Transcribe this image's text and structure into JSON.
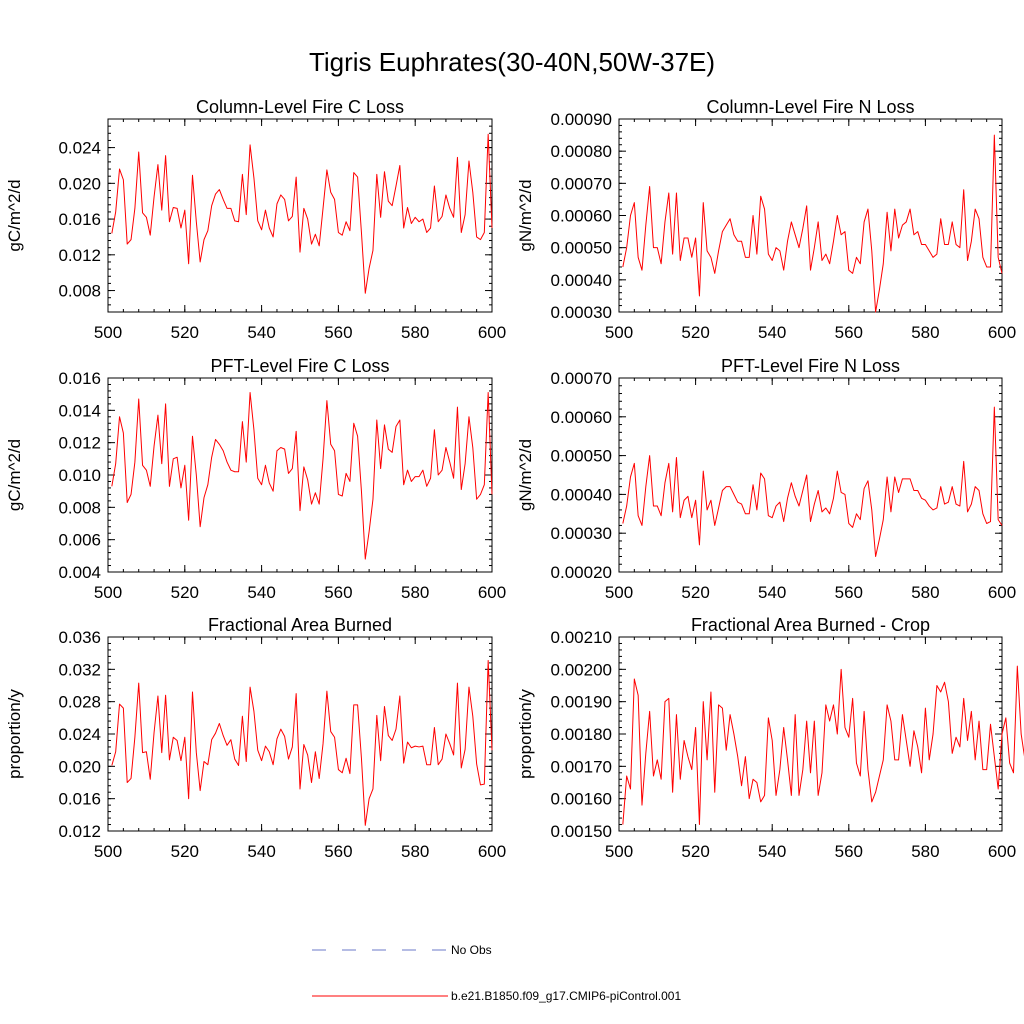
{
  "figure": {
    "title": "Tigris Euphrates(30-40N,50W-37E)"
  },
  "legend": {
    "entries": [
      {
        "label": "No Obs",
        "color": "#6b78c8",
        "style": "dashed"
      },
      {
        "label": "b.e21.B1850.f09_g17.CMIP6-piControl.001",
        "color": "#ff0000",
        "style": "solid"
      }
    ]
  },
  "chart_data": [
    {
      "type": "line",
      "title": "Column-Level Fire C Loss",
      "xlabel": "",
      "ylabel": "gC/m^2/d",
      "xlim": [
        500,
        600
      ],
      "ylim": [
        0.0056,
        0.0272
      ],
      "xticks": [
        500,
        520,
        540,
        560,
        580,
        600
      ],
      "xtick_labels": [
        "500",
        "520",
        "540",
        "560",
        "580",
        "600"
      ],
      "yticks": [
        0.008,
        0.012,
        0.016,
        0.02,
        0.024
      ],
      "ytick_labels": [
        "0.008",
        "0.012",
        "0.016",
        "0.020",
        "0.024"
      ],
      "x_start": 501,
      "series": [
        {
          "name": "b.e21.B1850.f09_g17.CMIP6-piControl.001",
          "color": "#ff0000",
          "values": [
            0.0144,
            0.0168,
            0.0216,
            0.0204,
            0.0132,
            0.0137,
            0.0172,
            0.0235,
            0.0167,
            0.0162,
            0.0142,
            0.0185,
            0.0221,
            0.017,
            0.0231,
            0.0157,
            0.0173,
            0.0172,
            0.015,
            0.017,
            0.011,
            0.0209,
            0.0157,
            0.0112,
            0.0137,
            0.0147,
            0.0175,
            0.0188,
            0.0193,
            0.0182,
            0.0172,
            0.0172,
            0.0158,
            0.0157,
            0.021,
            0.0165,
            0.0243,
            0.0206,
            0.0158,
            0.0148,
            0.017,
            0.015,
            0.014,
            0.0177,
            0.0187,
            0.0182,
            0.0158,
            0.0163,
            0.0207,
            0.0123,
            0.0172,
            0.016,
            0.0132,
            0.0143,
            0.013,
            0.0172,
            0.0215,
            0.019,
            0.0182,
            0.0145,
            0.0142,
            0.0157,
            0.0147,
            0.0212,
            0.0207,
            0.0145,
            0.0077,
            0.0105,
            0.0125,
            0.021,
            0.0162,
            0.0213,
            0.018,
            0.0175,
            0.0197,
            0.022,
            0.015,
            0.0173,
            0.0155,
            0.0162,
            0.0157,
            0.016,
            0.0145,
            0.015,
            0.0197,
            0.0157,
            0.0163,
            0.0187,
            0.0172,
            0.0162,
            0.0229,
            0.0145,
            0.0165,
            0.0225,
            0.019,
            0.014,
            0.0137,
            0.0145,
            0.0255,
            0.015
          ]
        }
      ]
    },
    {
      "type": "line",
      "title": "Column-Level Fire N Loss",
      "xlabel": "",
      "ylabel": "gN/m^2/d",
      "xlim": [
        500,
        600
      ],
      "ylim": [
        0.0003,
        0.0009
      ],
      "xticks": [
        500,
        520,
        540,
        560,
        580,
        600
      ],
      "xtick_labels": [
        "500",
        "520",
        "540",
        "560",
        "580",
        "600"
      ],
      "yticks": [
        0.0003,
        0.0004,
        0.0005,
        0.0006,
        0.0007,
        0.0008,
        0.0009
      ],
      "ytick_labels": [
        "0.00030",
        "0.00040",
        "0.00050",
        "0.00060",
        "0.00070",
        "0.00080",
        "0.00090"
      ],
      "x_start": 501,
      "series": [
        {
          "name": "b.e21.B1850.f09_g17.CMIP6-piControl.001",
          "color": "#ff0000",
          "values": [
            0.00044,
            0.0005,
            0.0006,
            0.00064,
            0.00047,
            0.00043,
            0.00057,
            0.00069,
            0.0005,
            0.0005,
            0.00045,
            0.00058,
            0.00067,
            0.00048,
            0.00067,
            0.00046,
            0.00053,
            0.00053,
            0.00047,
            0.00053,
            0.00035,
            0.00064,
            0.00049,
            0.00047,
            0.00042,
            0.00049,
            0.00055,
            0.00057,
            0.00059,
            0.00054,
            0.00052,
            0.00052,
            0.00047,
            0.00047,
            0.0006,
            0.00048,
            0.00066,
            0.00062,
            0.00048,
            0.00046,
            0.0005,
            0.00049,
            0.00043,
            0.00052,
            0.00058,
            0.00054,
            0.0005,
            0.00056,
            0.00063,
            0.00043,
            0.0005,
            0.00058,
            0.00046,
            0.00048,
            0.00045,
            0.00052,
            0.0006,
            0.00054,
            0.00055,
            0.00043,
            0.00042,
            0.00047,
            0.00045,
            0.00058,
            0.00062,
            0.00049,
            0.0003,
            0.00037,
            0.00045,
            0.00061,
            0.00049,
            0.00062,
            0.00053,
            0.00057,
            0.00058,
            0.00062,
            0.00054,
            0.00055,
            0.00051,
            0.00051,
            0.00049,
            0.00047,
            0.00048,
            0.00059,
            0.00051,
            0.00051,
            0.00058,
            0.00051,
            0.0005,
            0.00068,
            0.00046,
            0.00052,
            0.00062,
            0.00059,
            0.00047,
            0.00044,
            0.00044,
            0.00085,
            0.00047,
            0.00042
          ]
        }
      ]
    },
    {
      "type": "line",
      "title": "PFT-Level Fire C Loss",
      "xlabel": "",
      "ylabel": "gC/m^2/d",
      "xlim": [
        500,
        600
      ],
      "ylim": [
        0.004,
        0.016
      ],
      "xticks": [
        500,
        520,
        540,
        560,
        580,
        600
      ],
      "xtick_labels": [
        "500",
        "520",
        "540",
        "560",
        "580",
        "600"
      ],
      "yticks": [
        0.004,
        0.006,
        0.008,
        0.01,
        0.012,
        0.014,
        0.016
      ],
      "ytick_labels": [
        "0.004",
        "0.006",
        "0.008",
        "0.010",
        "0.012",
        "0.014",
        "0.016"
      ],
      "x_start": 501,
      "series": [
        {
          "name": "b.e21.B1850.f09_g17.CMIP6-piControl.001",
          "color": "#ff0000",
          "values": [
            0.0093,
            0.0107,
            0.0136,
            0.0126,
            0.0083,
            0.0088,
            0.0108,
            0.0147,
            0.0106,
            0.0103,
            0.0093,
            0.0118,
            0.0137,
            0.0107,
            0.0144,
            0.0093,
            0.011,
            0.0111,
            0.0092,
            0.0106,
            0.0072,
            0.0124,
            0.01,
            0.0068,
            0.0086,
            0.0094,
            0.0111,
            0.0122,
            0.0119,
            0.0115,
            0.0108,
            0.0103,
            0.0102,
            0.0102,
            0.0133,
            0.0108,
            0.0151,
            0.0128,
            0.0098,
            0.0094,
            0.0106,
            0.0095,
            0.009,
            0.0115,
            0.0117,
            0.0116,
            0.0101,
            0.0104,
            0.0127,
            0.0078,
            0.0105,
            0.0097,
            0.0082,
            0.0089,
            0.0082,
            0.011,
            0.0146,
            0.0119,
            0.0115,
            0.0088,
            0.0087,
            0.0101,
            0.0096,
            0.0132,
            0.0124,
            0.009,
            0.0048,
            0.0065,
            0.0085,
            0.0134,
            0.0104,
            0.0131,
            0.0116,
            0.0114,
            0.013,
            0.0134,
            0.0094,
            0.0103,
            0.0096,
            0.0099,
            0.0099,
            0.0103,
            0.0093,
            0.0098,
            0.0128,
            0.01,
            0.0103,
            0.0117,
            0.0108,
            0.0098,
            0.0142,
            0.0091,
            0.0107,
            0.0136,
            0.0117,
            0.0085,
            0.0088,
            0.0094,
            0.0151,
            0.0088
          ]
        }
      ]
    },
    {
      "type": "line",
      "title": "PFT-Level Fire N Loss",
      "xlabel": "",
      "ylabel": "gN/m^2/d",
      "xlim": [
        500,
        600
      ],
      "ylim": [
        0.0002,
        0.0007
      ],
      "xticks": [
        500,
        520,
        540,
        560,
        580,
        600
      ],
      "xtick_labels": [
        "500",
        "520",
        "540",
        "560",
        "580",
        "600"
      ],
      "yticks": [
        0.0002,
        0.0003,
        0.0004,
        0.0005,
        0.0006,
        0.0007
      ],
      "ytick_labels": [
        "0.00020",
        "0.00030",
        "0.00040",
        "0.00050",
        "0.00060",
        "0.00070"
      ],
      "x_start": 501,
      "series": [
        {
          "name": "b.e21.B1850.f09_g17.CMIP6-piControl.001",
          "color": "#ff0000",
          "values": [
            0.000325,
            0.00037,
            0.000445,
            0.00048,
            0.000345,
            0.00032,
            0.00042,
            0.0005,
            0.00037,
            0.00037,
            0.000345,
            0.00043,
            0.00048,
            0.000355,
            0.000495,
            0.00034,
            0.000385,
            0.000395,
            0.00034,
            0.000385,
            0.00027,
            0.00046,
            0.00036,
            0.000385,
            0.00032,
            0.000365,
            0.00041,
            0.00042,
            0.00042,
            0.0004,
            0.00038,
            0.000375,
            0.00035,
            0.00035,
            0.000425,
            0.00036,
            0.000455,
            0.00044,
            0.000345,
            0.00034,
            0.00037,
            0.00038,
            0.00033,
            0.00039,
            0.00043,
            0.000395,
            0.00037,
            0.00041,
            0.00045,
            0.00033,
            0.000375,
            0.00041,
            0.000355,
            0.000365,
            0.00035,
            0.00039,
            0.00046,
            0.000405,
            0.0004,
            0.000325,
            0.000315,
            0.00035,
            0.000335,
            0.000415,
            0.000435,
            0.00036,
            0.00024,
            0.000285,
            0.000335,
            0.000445,
            0.000355,
            0.000445,
            0.000405,
            0.00044,
            0.00044,
            0.00044,
            0.00041,
            0.00041,
            0.00039,
            0.000385,
            0.00037,
            0.00036,
            0.000365,
            0.00042,
            0.000375,
            0.00038,
            0.00042,
            0.000375,
            0.00037,
            0.000485,
            0.000355,
            0.000375,
            0.00042,
            0.00041,
            0.00035,
            0.000325,
            0.00033,
            0.000625,
            0.000335,
            0.00032
          ]
        }
      ]
    },
    {
      "type": "line",
      "title": "Fractional Area Burned",
      "xlabel": "",
      "ylabel": "proportion/y",
      "xlim": [
        500,
        600
      ],
      "ylim": [
        0.012,
        0.036
      ],
      "xticks": [
        500,
        520,
        540,
        560,
        580,
        600
      ],
      "xtick_labels": [
        "500",
        "520",
        "540",
        "560",
        "580",
        "600"
      ],
      "yticks": [
        0.012,
        0.016,
        0.02,
        0.024,
        0.028,
        0.032,
        0.036
      ],
      "ytick_labels": [
        "0.012",
        "0.016",
        "0.020",
        "0.024",
        "0.028",
        "0.032",
        "0.036"
      ],
      "x_start": 501,
      "series": [
        {
          "name": "b.e21.B1850.f09_g17.CMIP6-piControl.001",
          "color": "#ff0000",
          "values": [
            0.0201,
            0.0218,
            0.0277,
            0.0272,
            0.018,
            0.0185,
            0.0236,
            0.0303,
            0.0217,
            0.0218,
            0.0184,
            0.0242,
            0.0287,
            0.0217,
            0.0288,
            0.0208,
            0.0236,
            0.0232,
            0.0207,
            0.0236,
            0.016,
            0.0292,
            0.0217,
            0.017,
            0.0206,
            0.0202,
            0.0233,
            0.0241,
            0.0253,
            0.0238,
            0.0226,
            0.0233,
            0.0209,
            0.0201,
            0.0262,
            0.0206,
            0.0298,
            0.0268,
            0.022,
            0.0207,
            0.0225,
            0.0218,
            0.0202,
            0.0234,
            0.0246,
            0.0237,
            0.0209,
            0.0224,
            0.029,
            0.0172,
            0.0227,
            0.0214,
            0.018,
            0.0218,
            0.0185,
            0.0228,
            0.0293,
            0.0243,
            0.0236,
            0.0196,
            0.0192,
            0.021,
            0.0191,
            0.0276,
            0.0276,
            0.021,
            0.0127,
            0.016,
            0.0172,
            0.0263,
            0.0207,
            0.0274,
            0.0238,
            0.0232,
            0.0246,
            0.0287,
            0.0204,
            0.023,
            0.0223,
            0.0225,
            0.0224,
            0.0225,
            0.0202,
            0.0202,
            0.0248,
            0.0202,
            0.0209,
            0.024,
            0.0228,
            0.0214,
            0.0303,
            0.0198,
            0.0221,
            0.0298,
            0.0262,
            0.0203,
            0.0177,
            0.0178,
            0.0331,
            0.022
          ]
        }
      ]
    },
    {
      "type": "line",
      "title": "Fractional Area Burned - Crop",
      "xlabel": "",
      "ylabel": "proportion/y",
      "xlim": [
        500,
        600
      ],
      "ylim": [
        0.0015,
        0.0021
      ],
      "xticks": [
        500,
        520,
        540,
        560,
        580,
        600
      ],
      "xtick_labels": [
        "500",
        "520",
        "540",
        "560",
        "580",
        "600"
      ],
      "yticks": [
        0.0015,
        0.0016,
        0.0017,
        0.0018,
        0.0019,
        0.002,
        0.0021
      ],
      "ytick_labels": [
        "0.00150",
        "0.00160",
        "0.00170",
        "0.00180",
        "0.00190",
        "0.00200",
        "0.00210"
      ],
      "x_start": 501,
      "series": [
        {
          "name": "b.e21.B1850.f09_g17.CMIP6-piControl.001",
          "color": "#ff0000",
          "values": [
            0.00152,
            0.00167,
            0.00163,
            0.00197,
            0.00192,
            0.00158,
            0.00174,
            0.00187,
            0.00167,
            0.00172,
            0.00166,
            0.0019,
            0.00191,
            0.00162,
            0.00186,
            0.00166,
            0.00178,
            0.00173,
            0.00169,
            0.00182,
            0.00152,
            0.0019,
            0.00172,
            0.00193,
            0.00162,
            0.00189,
            0.00188,
            0.00175,
            0.00186,
            0.0018,
            0.00173,
            0.00164,
            0.00173,
            0.0016,
            0.00166,
            0.00165,
            0.00159,
            0.00161,
            0.00185,
            0.00178,
            0.00161,
            0.00169,
            0.00182,
            0.00172,
            0.00161,
            0.00186,
            0.00161,
            0.00169,
            0.00184,
            0.00168,
            0.00184,
            0.00161,
            0.00168,
            0.00189,
            0.00184,
            0.00189,
            0.0018,
            0.002,
            0.00182,
            0.00179,
            0.00191,
            0.00171,
            0.00167,
            0.00187,
            0.00169,
            0.00159,
            0.00162,
            0.00167,
            0.00172,
            0.00189,
            0.00184,
            0.00172,
            0.00172,
            0.00186,
            0.00178,
            0.0017,
            0.00181,
            0.00176,
            0.00168,
            0.00188,
            0.00172,
            0.0018,
            0.00195,
            0.00193,
            0.00196,
            0.0019,
            0.00174,
            0.00179,
            0.00176,
            0.00191,
            0.00178,
            0.00187,
            0.00172,
            0.00184,
            0.00169,
            0.00169,
            0.00183,
            0.00173,
            0.00163,
            0.0018,
            0.00185,
            0.00171,
            0.00168,
            0.00201,
            0.0018,
            0.00172
          ]
        }
      ]
    }
  ]
}
